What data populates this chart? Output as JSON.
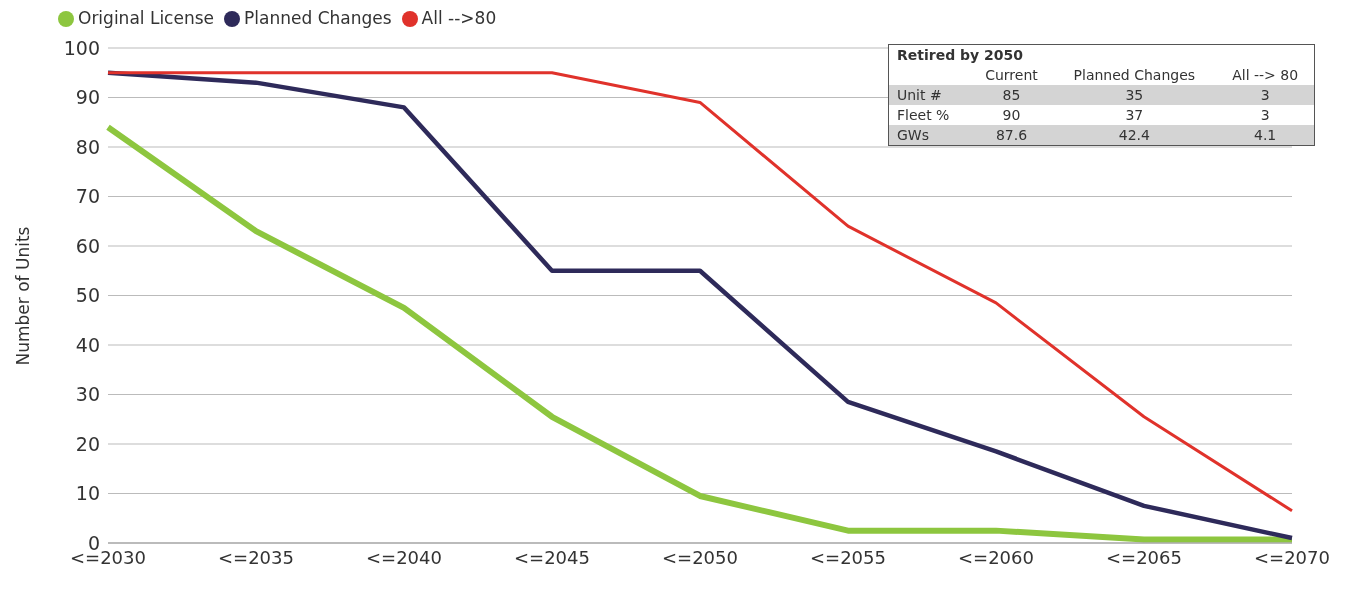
{
  "chart_data": [
    {
      "type": "line",
      "ylabel": "Number of Units",
      "categories": [
        "<=2030",
        "<=2035",
        "<=2040",
        "<=2045",
        "<=2050",
        "<=2055",
        "<=2060",
        "<=2065",
        "<=2070"
      ],
      "series": [
        {
          "name": "Original License",
          "color": "#8dc63f",
          "values": [
            84,
            63,
            47.5,
            25.5,
            9.5,
            2.5,
            2.5,
            0.7,
            0.7
          ]
        },
        {
          "name": "Planned Changes",
          "color": "#2e2a5a",
          "values": [
            95,
            93,
            88,
            55,
            55,
            28.5,
            18.5,
            7.5,
            1
          ]
        },
        {
          "name": "All -->80",
          "color": "#e0322b",
          "values": [
            95,
            95,
            95,
            95,
            89,
            64,
            48.5,
            25.5,
            6.5
          ]
        }
      ],
      "ylim": [
        0,
        100
      ],
      "yticks": [
        0,
        10,
        20,
        30,
        40,
        50,
        60,
        70,
        80,
        90,
        100
      ],
      "grid": "y",
      "legend": "top left",
      "marker": "none",
      "line_style": "solid"
    },
    {
      "type": "other",
      "title": "Retired by 2050",
      "categories": [
        "Current",
        "Planned Changes",
        "All --> 80"
      ],
      "y_categories": [
        "Unit #",
        "Fleet %",
        "GWs"
      ],
      "annotations": [
        "85",
        "35",
        "3",
        "90",
        "37",
        "3",
        "87.6",
        "42.4",
        "4.1"
      ]
    }
  ]
}
